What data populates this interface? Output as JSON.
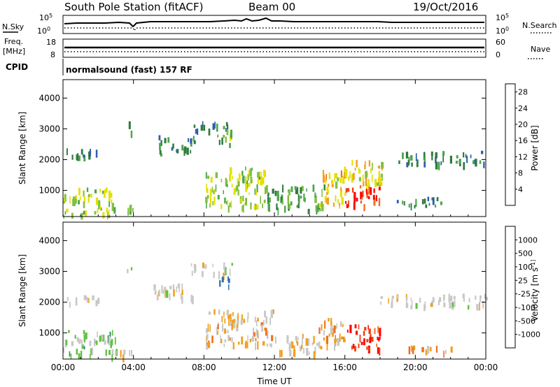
{
  "header": {
    "station": "South Pole Station (fitACF)",
    "beam": "Beam 00",
    "date": "19/Oct/2016"
  },
  "top_panels": {
    "nsky_label": "N.Sky",
    "nsky_ticks": [
      "10^5",
      "10^0"
    ],
    "nsearch_label": "N.Search",
    "nsearch_ticks": [
      "10^5",
      "10^0"
    ],
    "freq_label_1": "Freq.",
    "freq_label_2": "[MHz]",
    "freq_ticks": [
      "18",
      "8"
    ],
    "nave_label": "Nave",
    "nave_ticks": [
      "60",
      "0"
    ],
    "cpid_label": "CPID",
    "cpid_text": "normalsound (fast) 157 RF"
  },
  "colors": {
    "power": [
      "#0000ff",
      "#2e5fb0",
      "#2f7a40",
      "#4ca64c",
      "#80c040",
      "#e6e000",
      "#f0a020",
      "#f07020",
      "#f04010",
      "#ff0000"
    ],
    "velocity": [
      "#2040c0",
      "#3070b0",
      "#30905a",
      "#60c040",
      "#c8c8c8",
      "#c8c8c8",
      "#f0a020",
      "#f07020",
      "#f04010",
      "#ff0000"
    ]
  },
  "chart_data": [
    {
      "type": "heatmap",
      "title": "",
      "xlabel": "",
      "ylabel": "Slant Range [km]",
      "x_ticks": [
        "00:00",
        "04:00",
        "08:00",
        "12:00",
        "16:00",
        "20:00",
        "00:00"
      ],
      "y_ticks": [
        1000,
        2000,
        3000,
        4000
      ],
      "ylim": [
        150,
        4600
      ],
      "colorbar": {
        "label": "Power [dB]",
        "ticks": [
          "4",
          "8",
          "12",
          "16",
          "20",
          "24",
          "28"
        ],
        "range": [
          0,
          30
        ]
      },
      "regions": [
        {
          "t": [
            0.2,
            2.0
          ],
          "r": [
            2000,
            2400
          ],
          "v": 8
        },
        {
          "t": [
            0.0,
            2.8
          ],
          "r": [
            200,
            1100
          ],
          "v": 14
        },
        {
          "t": [
            2.8,
            4.2
          ],
          "r": [
            250,
            550
          ],
          "v": 12
        },
        {
          "t": [
            3.6,
            3.9
          ],
          "r": [
            2900,
            3300
          ],
          "v": 6
        },
        {
          "t": [
            5.4,
            7.5
          ],
          "r": [
            2200,
            2800
          ],
          "v": 7
        },
        {
          "t": [
            7.2,
            9.6
          ],
          "r": [
            2950,
            3250
          ],
          "v": 7
        },
        {
          "t": [
            8.5,
            9.6
          ],
          "r": [
            2500,
            3000
          ],
          "v": 12
        },
        {
          "t": [
            8.0,
            11.5
          ],
          "r": [
            500,
            1800
          ],
          "v": 14
        },
        {
          "t": [
            11.5,
            14.8
          ],
          "r": [
            400,
            1200
          ],
          "v": 10
        },
        {
          "t": [
            14.5,
            16.0
          ],
          "r": [
            500,
            1800
          ],
          "v": 18
        },
        {
          "t": [
            15.8,
            18.0
          ],
          "r": [
            500,
            1200
          ],
          "v": 25
        },
        {
          "t": [
            16.0,
            18.5
          ],
          "r": [
            1200,
            2000
          ],
          "v": 16
        },
        {
          "t": [
            19.0,
            24.0
          ],
          "r": [
            1900,
            2300
          ],
          "v": 8
        },
        {
          "t": [
            18.5,
            21.5
          ],
          "r": [
            500,
            800
          ],
          "v": 8
        }
      ]
    },
    {
      "type": "heatmap",
      "title": "",
      "xlabel": "Time UT",
      "ylabel": "Slant Range [km]",
      "x_ticks": [
        "00:00",
        "04:00",
        "08:00",
        "12:00",
        "16:00",
        "20:00",
        "00:00"
      ],
      "y_ticks": [
        1000,
        2000,
        3000,
        4000
      ],
      "ylim": [
        150,
        4600
      ],
      "colorbar": {
        "label": "Velocity [m s^-1]",
        "ticks": [
          "1000",
          "500",
          "100",
          "25",
          "-25",
          "-100",
          "-500",
          "-1000"
        ],
        "range": [
          -1000,
          1000
        ]
      },
      "regions": [
        {
          "t": [
            0.2,
            2.0
          ],
          "r": [
            2000,
            2300
          ],
          "v": 0
        },
        {
          "t": [
            0.0,
            3.0
          ],
          "r": [
            300,
            1100
          ],
          "v": 200
        },
        {
          "t": [
            2.8,
            4.2
          ],
          "r": [
            300,
            550
          ],
          "v": -150
        },
        {
          "t": [
            3.6,
            3.9
          ],
          "r": [
            3000,
            3300
          ],
          "v": 0
        },
        {
          "t": [
            5.0,
            7.5
          ],
          "r": [
            2200,
            2700
          ],
          "v": 0
        },
        {
          "t": [
            7.2,
            9.6
          ],
          "r": [
            2950,
            3300
          ],
          "v": 0
        },
        {
          "t": [
            8.8,
            9.4
          ],
          "r": [
            2500,
            2900
          ],
          "v": 700
        },
        {
          "t": [
            8.0,
            12.0
          ],
          "r": [
            600,
            1800
          ],
          "v": -200
        },
        {
          "t": [
            12.0,
            14.5
          ],
          "r": [
            400,
            1000
          ],
          "v": -150
        },
        {
          "t": [
            14.5,
            16.0
          ],
          "r": [
            500,
            1500
          ],
          "v": -300
        },
        {
          "t": [
            16.0,
            18.0
          ],
          "r": [
            500,
            1300
          ],
          "v": -800
        },
        {
          "t": [
            18.0,
            24.0
          ],
          "r": [
            1900,
            2300
          ],
          "v": 0
        },
        {
          "t": [
            19.0,
            22.0
          ],
          "r": [
            400,
            600
          ],
          "v": -300
        }
      ]
    }
  ]
}
